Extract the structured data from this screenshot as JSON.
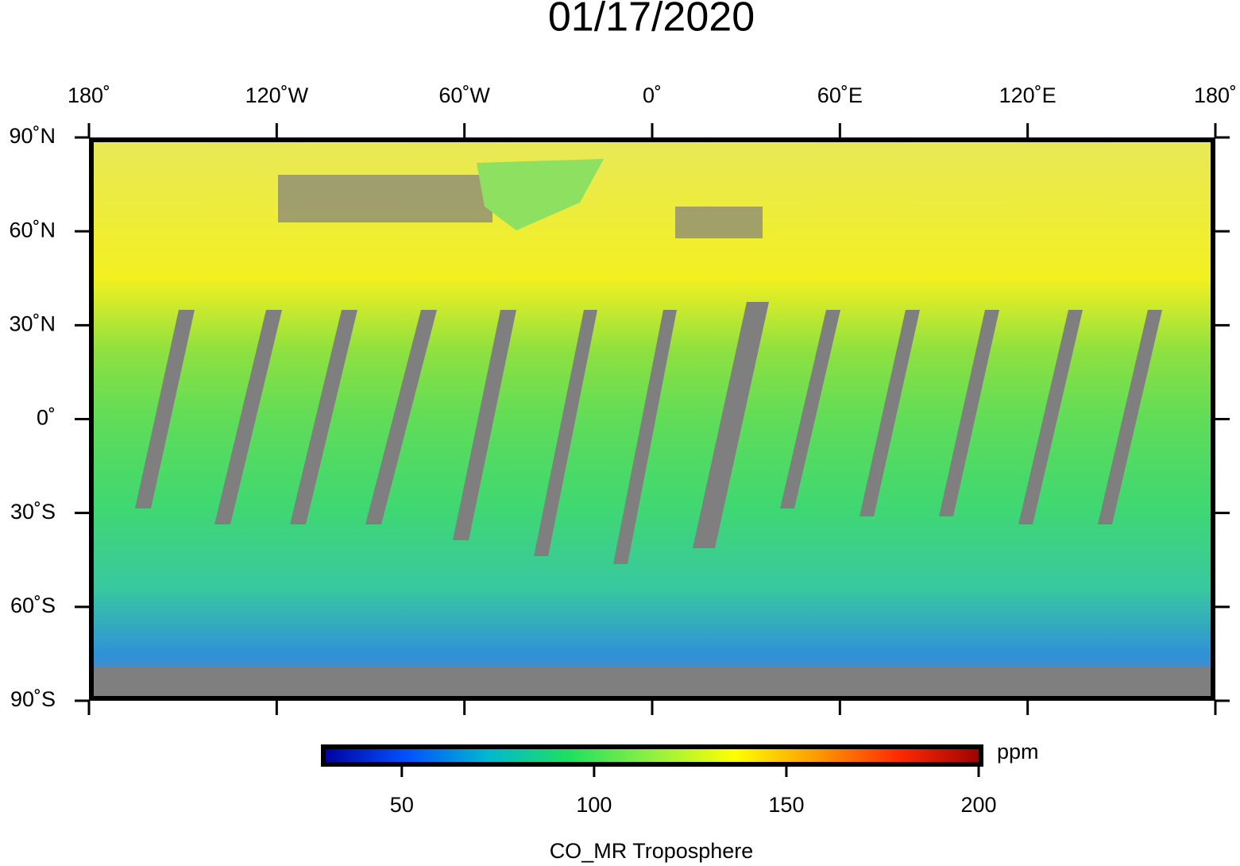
{
  "title": "01/17/2020",
  "map": {
    "xlim": [
      -180,
      180
    ],
    "ylim": [
      -90,
      90
    ],
    "xticks": [
      {
        "value": -180,
        "label": "180˚"
      },
      {
        "value": -120,
        "label": "120˚W"
      },
      {
        "value": -60,
        "label": "60˚W"
      },
      {
        "value": 0,
        "label": "0˚"
      },
      {
        "value": 60,
        "label": "60˚E"
      },
      {
        "value": 120,
        "label": "120˚E"
      },
      {
        "value": 180,
        "label": "180˚"
      }
    ],
    "yticks": [
      {
        "value": 90,
        "label": "90˚N"
      },
      {
        "value": 60,
        "label": "60˚N"
      },
      {
        "value": 30,
        "label": "30˚N"
      },
      {
        "value": 0,
        "label": "0˚"
      },
      {
        "value": -30,
        "label": "30˚S"
      },
      {
        "value": -60,
        "label": "60˚S"
      },
      {
        "value": -90,
        "label": "90˚S"
      }
    ]
  },
  "colorbar": {
    "lim": [
      30,
      200
    ],
    "ticks": [
      50,
      100,
      150,
      200
    ],
    "unit": "ppm",
    "label": "CO_MR Troposphere",
    "colors": [
      "#0000a0",
      "#0050ff",
      "#00b8d0",
      "#20e060",
      "#90f040",
      "#ffff00",
      "#ff9a00",
      "#ff2a00",
      "#a00000"
    ]
  }
}
